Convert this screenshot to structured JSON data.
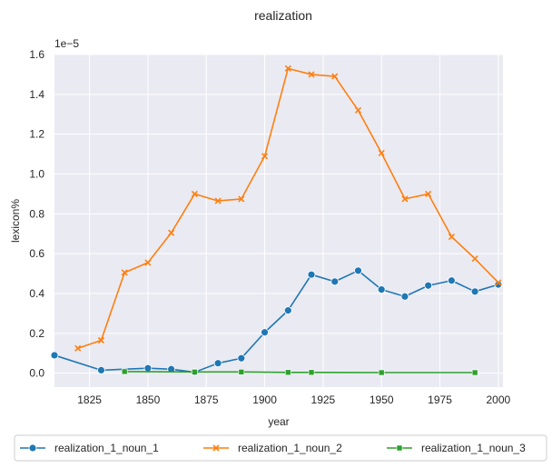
{
  "chart_data": {
    "type": "line",
    "title": "realization",
    "xlabel": "year",
    "ylabel": "lexicon%",
    "y_multiplier_label": "1e−5",
    "xlim": [
      1810,
      2002
    ],
    "ylim": [
      -0.07,
      1.6
    ],
    "xticks": [
      1825,
      1850,
      1875,
      1900,
      1925,
      1950,
      1975,
      2000
    ],
    "yticks": [
      0.0,
      0.2,
      0.4,
      0.6,
      0.8,
      1.0,
      1.2,
      1.4,
      1.6
    ],
    "ytick_labels": [
      "0.0",
      "0.2",
      "0.4",
      "0.6",
      "0.8",
      "1.0",
      "1.2",
      "1.4",
      "1.6"
    ],
    "grid": true,
    "legend_position": "bottom",
    "series": [
      {
        "name": "realization_1_noun_1",
        "color": "#1f77b4",
        "marker": "circle",
        "x": [
          1810,
          1830,
          1850,
          1860,
          1870,
          1880,
          1890,
          1900,
          1910,
          1920,
          1930,
          1940,
          1950,
          1960,
          1970,
          1980,
          1990,
          2000
        ],
        "y": [
          0.09,
          0.015,
          0.025,
          0.02,
          0.005,
          0.05,
          0.075,
          0.205,
          0.315,
          0.495,
          0.46,
          0.515,
          0.42,
          0.385,
          0.44,
          0.465,
          0.41,
          0.445
        ]
      },
      {
        "name": "realization_1_noun_2",
        "color": "#ff7f0e",
        "marker": "x",
        "x": [
          1820,
          1830,
          1840,
          1850,
          1860,
          1870,
          1880,
          1890,
          1900,
          1910,
          1920,
          1930,
          1940,
          1950,
          1960,
          1970,
          1980,
          1990,
          2000
        ],
        "y": [
          0.125,
          0.165,
          0.505,
          0.555,
          0.705,
          0.9,
          0.865,
          0.875,
          1.09,
          1.53,
          1.5,
          1.49,
          1.32,
          1.105,
          0.875,
          0.9,
          0.685,
          0.575,
          0.455
        ]
      },
      {
        "name": "realization_1_noun_3",
        "color": "#2ca02c",
        "marker": "square",
        "x": [
          1840,
          1870,
          1890,
          1910,
          1920,
          1950,
          1990
        ],
        "y": [
          0.008,
          0.006,
          0.006,
          0.004,
          0.004,
          0.003,
          0.003
        ]
      }
    ]
  }
}
